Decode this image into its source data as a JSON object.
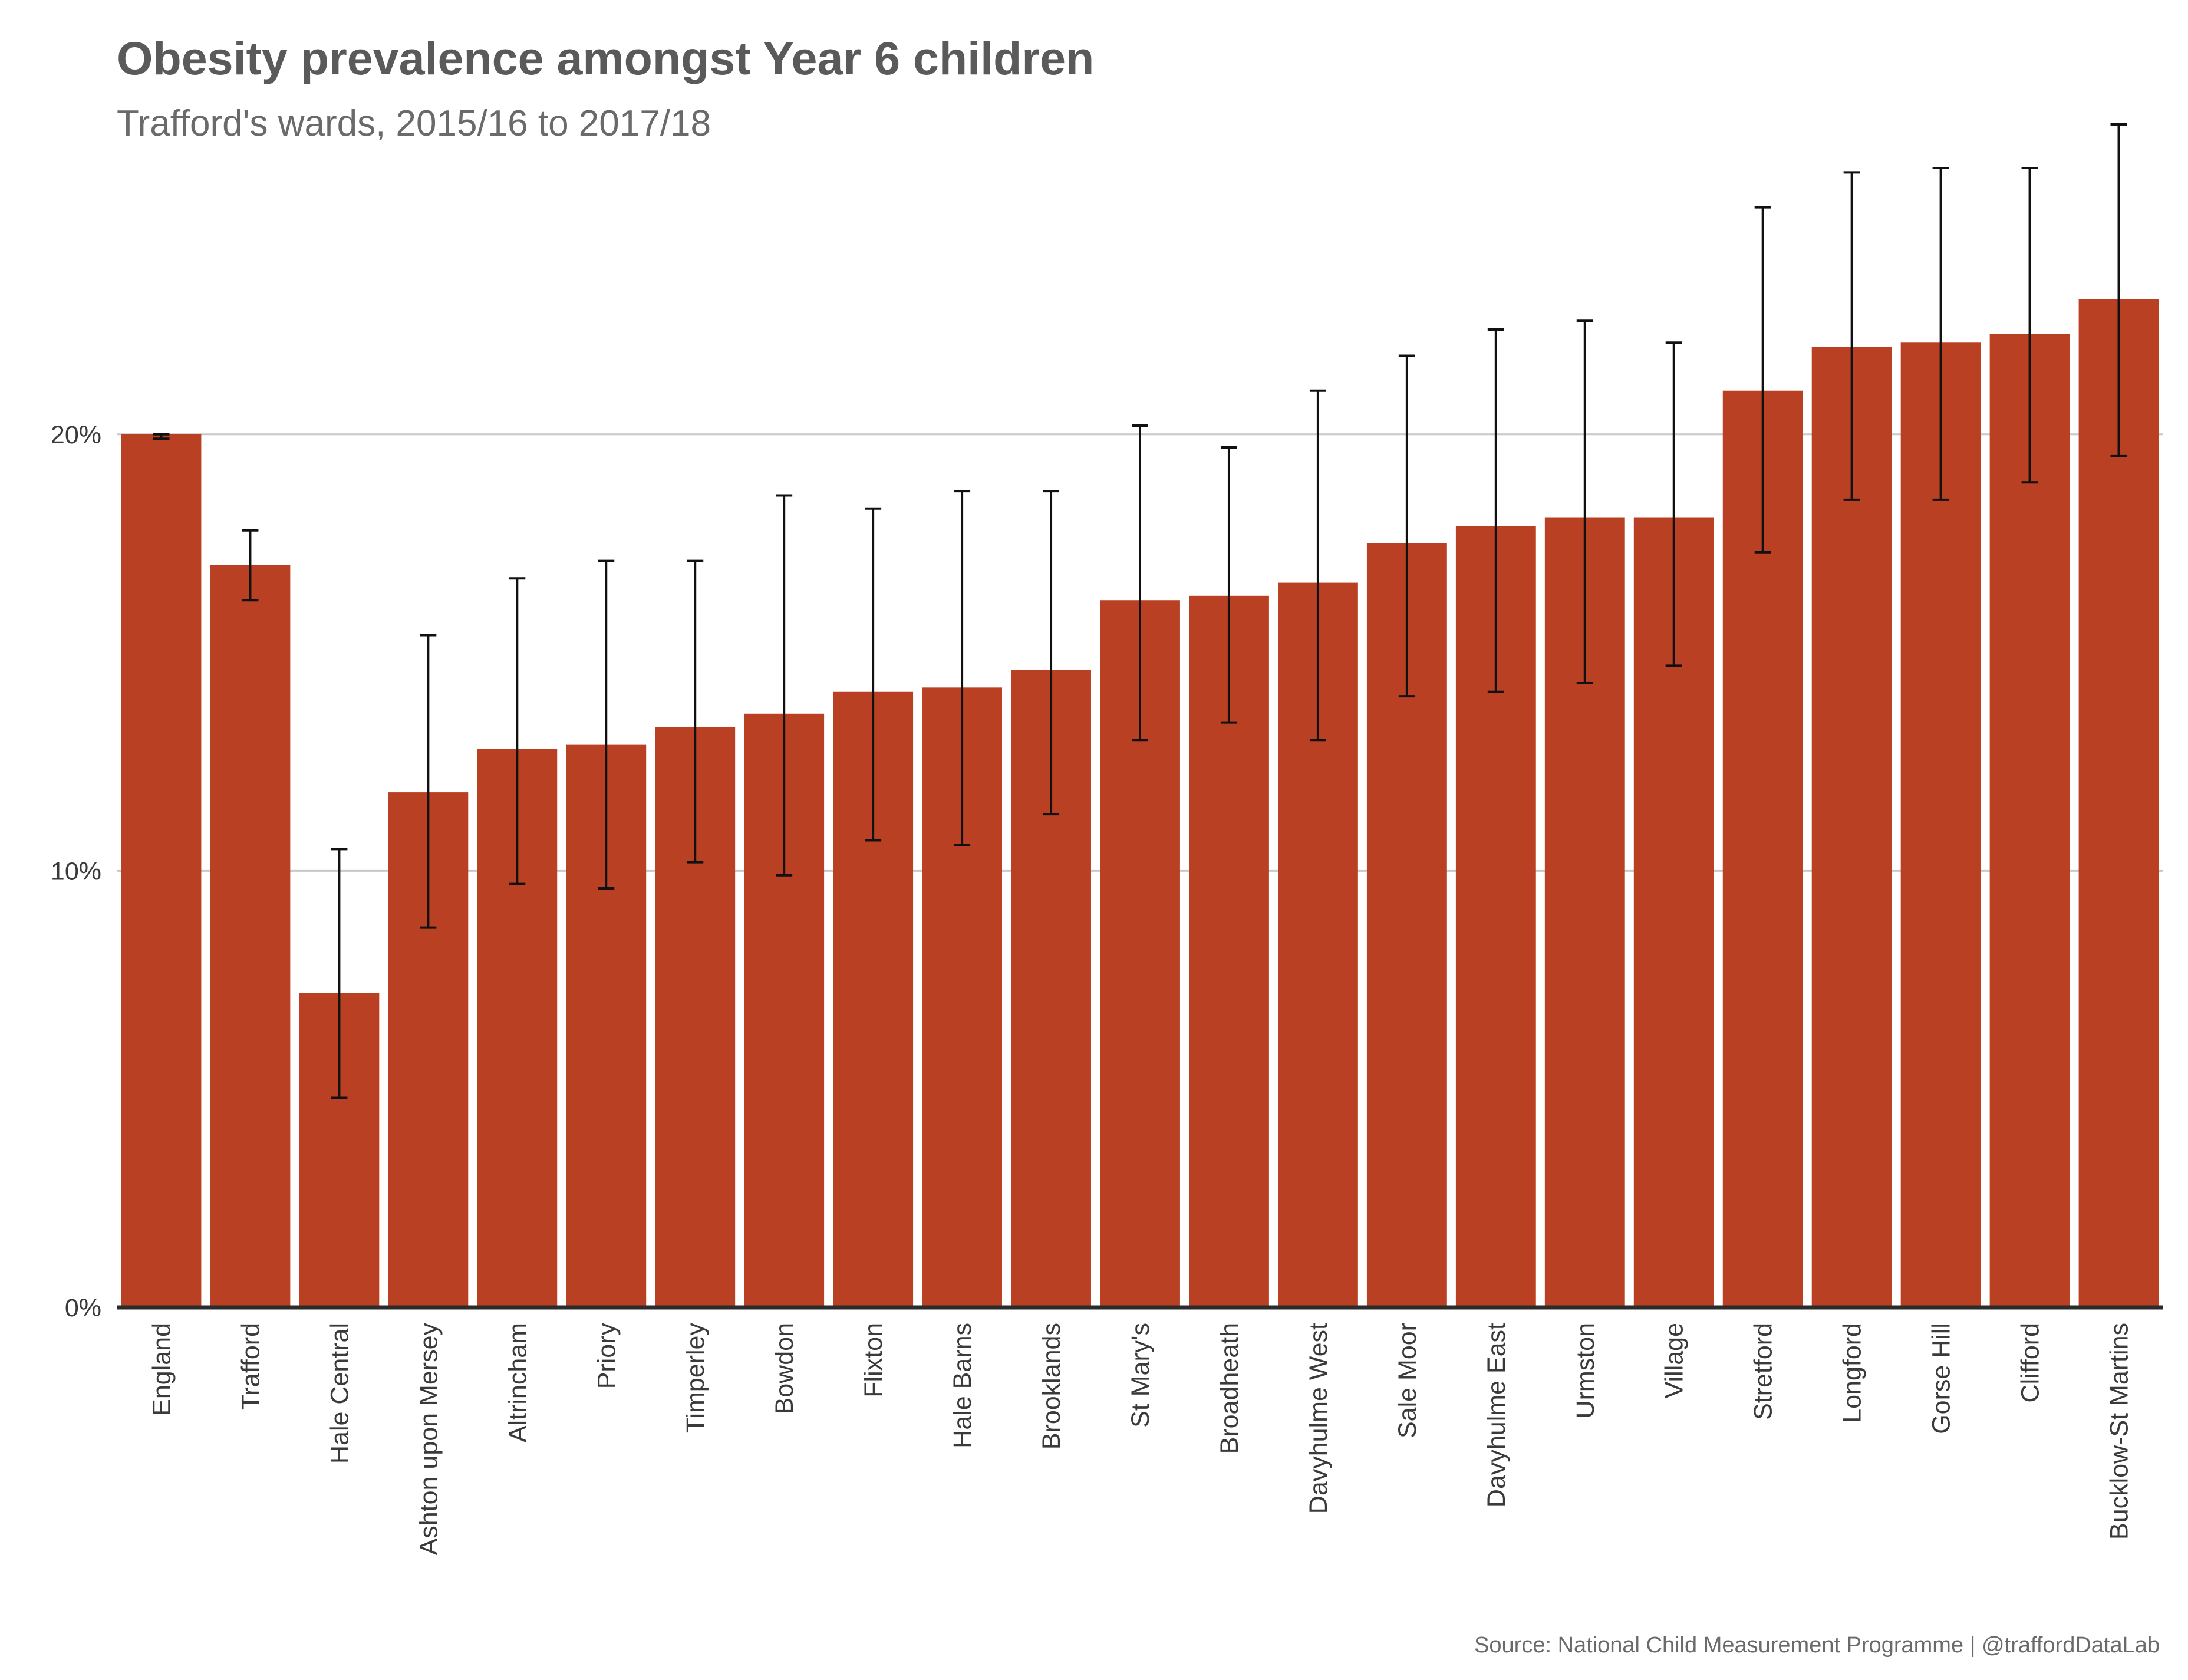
{
  "chart_data": {
    "type": "bar",
    "title": "Obesity prevalence amongst Year 6 children",
    "subtitle": "Trafford's wards, 2015/16 to 2017/18",
    "caption": "Source: National Child Measurement Programme | @traffordDataLab",
    "xlabel": "",
    "ylabel": "",
    "ylim": [
      0,
      26.6
    ],
    "yticks": [
      0,
      10,
      20
    ],
    "ytick_labels": [
      "0%",
      "10%",
      "20%"
    ],
    "grid": true,
    "legend": "none",
    "bar_color": "#b94023",
    "categories": [
      "England",
      "Trafford",
      "Hale Central",
      "Ashton upon Mersey",
      "Altrincham",
      "Priory",
      "Timperley",
      "Bowdon",
      "Flixton",
      "Hale Barns",
      "Brooklands",
      "St Mary's",
      "Broadheath",
      "Davyhulme West",
      "Sale Moor",
      "Davyhulme East",
      "Urmston",
      "Village",
      "Stretford",
      "Longford",
      "Gorse Hill",
      "Clifford",
      "Bucklow-St Martins"
    ],
    "values": [
      20.0,
      17.0,
      7.2,
      11.8,
      12.8,
      12.9,
      13.3,
      13.6,
      14.1,
      14.2,
      14.6,
      16.2,
      16.3,
      16.6,
      17.5,
      17.9,
      18.1,
      18.1,
      21.0,
      22.0,
      22.1,
      22.3,
      23.1
    ],
    "lower": [
      19.9,
      16.2,
      4.8,
      8.7,
      9.7,
      9.6,
      10.2,
      9.9,
      10.7,
      10.6,
      11.3,
      13.0,
      13.4,
      13.0,
      14.0,
      14.1,
      14.3,
      14.7,
      17.3,
      18.5,
      18.5,
      18.9,
      19.5
    ],
    "upper": [
      20.0,
      17.8,
      10.5,
      15.4,
      16.7,
      17.1,
      17.1,
      18.6,
      18.3,
      18.7,
      18.7,
      20.2,
      19.7,
      21.0,
      21.8,
      22.4,
      22.6,
      22.1,
      25.2,
      26.0,
      26.1,
      26.1,
      27.1
    ]
  }
}
